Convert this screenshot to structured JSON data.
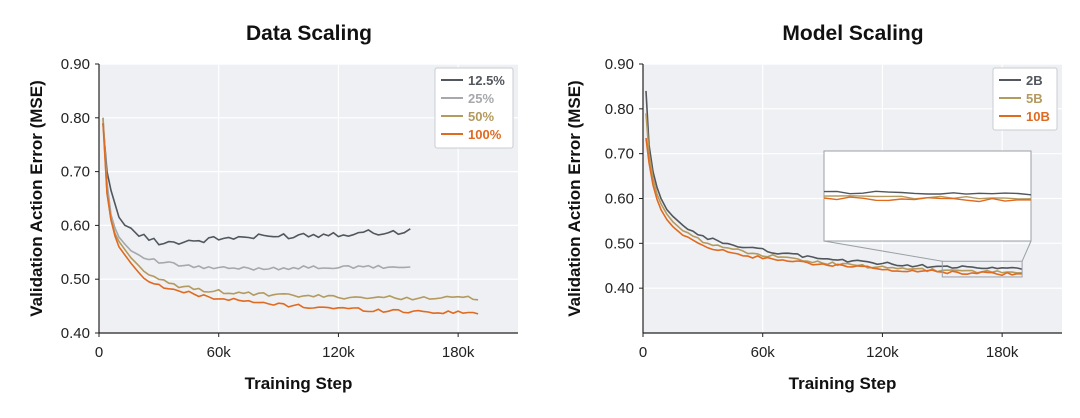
{
  "chart_data": [
    {
      "type": "line",
      "title": "Data Scaling",
      "xlabel": "Training Step",
      "ylabel": "Validation Action Error (MSE)",
      "xlim": [
        0,
        210000
      ],
      "ylim": [
        0.4,
        0.9
      ],
      "xticks": [
        0,
        60000,
        120000,
        180000
      ],
      "xtick_labels": [
        "0",
        "60k",
        "120k",
        "180k"
      ],
      "yticks": [
        0.4,
        0.5,
        0.6,
        0.7,
        0.8,
        0.9
      ],
      "ytick_labels": [
        "0.40",
        "0.50",
        "0.60",
        "0.70",
        "0.80",
        "0.90"
      ],
      "grid": true,
      "legend": "top-right",
      "series": [
        {
          "name": "12.5%",
          "color": "#52575e",
          "points": [
            [
              2000,
              0.79
            ],
            [
              4000,
              0.7
            ],
            [
              6000,
              0.665
            ],
            [
              8000,
              0.64
            ],
            [
              10000,
              0.615
            ],
            [
              13000,
              0.6
            ],
            [
              16000,
              0.595
            ],
            [
              20000,
              0.58
            ],
            [
              25000,
              0.575
            ],
            [
              30000,
              0.57
            ],
            [
              35000,
              0.568
            ],
            [
              40000,
              0.57
            ],
            [
              50000,
              0.572
            ],
            [
              60000,
              0.575
            ],
            [
              70000,
              0.578
            ],
            [
              80000,
              0.578
            ],
            [
              90000,
              0.58
            ],
            [
              100000,
              0.582
            ],
            [
              110000,
              0.583
            ],
            [
              120000,
              0.585
            ],
            [
              130000,
              0.586
            ],
            [
              140000,
              0.588
            ],
            [
              150000,
              0.586
            ],
            [
              156000,
              0.595
            ]
          ]
        },
        {
          "name": "25%",
          "color": "#a6a8ab",
          "points": [
            [
              2000,
              0.8
            ],
            [
              4000,
              0.68
            ],
            [
              6000,
              0.62
            ],
            [
              8000,
              0.595
            ],
            [
              10000,
              0.578
            ],
            [
              13000,
              0.565
            ],
            [
              16000,
              0.553
            ],
            [
              20000,
              0.545
            ],
            [
              25000,
              0.537
            ],
            [
              30000,
              0.532
            ],
            [
              40000,
              0.526
            ],
            [
              50000,
              0.522
            ],
            [
              60000,
              0.52
            ],
            [
              70000,
              0.52
            ],
            [
              80000,
              0.52
            ],
            [
              90000,
              0.521
            ],
            [
              100000,
              0.521
            ],
            [
              110000,
              0.522
            ],
            [
              120000,
              0.522
            ],
            [
              130000,
              0.522
            ],
            [
              140000,
              0.523
            ],
            [
              150000,
              0.522
            ],
            [
              156000,
              0.522
            ]
          ]
        },
        {
          "name": "50%",
          "color": "#b39a5e",
          "points": [
            [
              2000,
              0.8
            ],
            [
              4000,
              0.66
            ],
            [
              6000,
              0.61
            ],
            [
              8000,
              0.585
            ],
            [
              10000,
              0.57
            ],
            [
              13000,
              0.555
            ],
            [
              16000,
              0.54
            ],
            [
              20000,
              0.525
            ],
            [
              25000,
              0.508
            ],
            [
              30000,
              0.498
            ],
            [
              40000,
              0.487
            ],
            [
              50000,
              0.481
            ],
            [
              60000,
              0.477
            ],
            [
              70000,
              0.474
            ],
            [
              80000,
              0.472
            ],
            [
              90000,
              0.47
            ],
            [
              100000,
              0.469
            ],
            [
              110000,
              0.468
            ],
            [
              120000,
              0.467
            ],
            [
              140000,
              0.466
            ],
            [
              160000,
              0.465
            ],
            [
              180000,
              0.465
            ],
            [
              190000,
              0.465
            ]
          ]
        },
        {
          "name": "100%",
          "color": "#e06a1f",
          "points": [
            [
              2000,
              0.79
            ],
            [
              4000,
              0.66
            ],
            [
              6000,
              0.61
            ],
            [
              8000,
              0.58
            ],
            [
              10000,
              0.56
            ],
            [
              13000,
              0.545
            ],
            [
              16000,
              0.53
            ],
            [
              20000,
              0.512
            ],
            [
              25000,
              0.498
            ],
            [
              30000,
              0.488
            ],
            [
              40000,
              0.478
            ],
            [
              50000,
              0.47
            ],
            [
              60000,
              0.465
            ],
            [
              70000,
              0.46
            ],
            [
              80000,
              0.456
            ],
            [
              90000,
              0.453
            ],
            [
              100000,
              0.45
            ],
            [
              110000,
              0.448
            ],
            [
              120000,
              0.446
            ],
            [
              130000,
              0.444
            ],
            [
              140000,
              0.442
            ],
            [
              150000,
              0.441
            ],
            [
              160000,
              0.44
            ],
            [
              170000,
              0.439
            ],
            [
              180000,
              0.438
            ],
            [
              190000,
              0.438
            ]
          ]
        }
      ]
    },
    {
      "type": "line",
      "title": "Model Scaling",
      "xlabel": "Training Step",
      "ylabel": "Validation Action Error (MSE)",
      "xlim": [
        0,
        210000
      ],
      "ylim": [
        0.3,
        0.9
      ],
      "xticks": [
        0,
        60000,
        120000,
        180000
      ],
      "xtick_labels": [
        "0",
        "60k",
        "120k",
        "180k"
      ],
      "yticks": [
        0.4,
        0.5,
        0.6,
        0.7,
        0.8,
        0.9
      ],
      "ytick_labels": [
        "0.40",
        "0.50",
        "0.60",
        "0.70",
        "0.80",
        "0.90"
      ],
      "grid": true,
      "legend": "top-right",
      "inset": true,
      "series": [
        {
          "name": "2B",
          "color": "#52575e",
          "points": [
            [
              1500,
              0.84
            ],
            [
              3000,
              0.72
            ],
            [
              5000,
              0.66
            ],
            [
              7000,
              0.625
            ],
            [
              9000,
              0.6
            ],
            [
              12000,
              0.575
            ],
            [
              15000,
              0.56
            ],
            [
              20000,
              0.54
            ],
            [
              25000,
              0.525
            ],
            [
              30000,
              0.515
            ],
            [
              40000,
              0.502
            ],
            [
              50000,
              0.492
            ],
            [
              60000,
              0.485
            ],
            [
              70000,
              0.478
            ],
            [
              80000,
              0.472
            ],
            [
              90000,
              0.466
            ],
            [
              100000,
              0.462
            ],
            [
              110000,
              0.458
            ],
            [
              120000,
              0.455
            ],
            [
              130000,
              0.452
            ],
            [
              140000,
              0.45
            ],
            [
              150000,
              0.448
            ],
            [
              160000,
              0.446
            ],
            [
              170000,
              0.445
            ],
            [
              180000,
              0.444
            ],
            [
              190000,
              0.443
            ]
          ]
        },
        {
          "name": "5B",
          "color": "#b39a5e",
          "points": [
            [
              1500,
              0.79
            ],
            [
              3000,
              0.7
            ],
            [
              5000,
              0.645
            ],
            [
              7000,
              0.61
            ],
            [
              9000,
              0.588
            ],
            [
              12000,
              0.565
            ],
            [
              15000,
              0.548
            ],
            [
              20000,
              0.528
            ],
            [
              25000,
              0.515
            ],
            [
              30000,
              0.505
            ],
            [
              40000,
              0.492
            ],
            [
              50000,
              0.482
            ],
            [
              60000,
              0.474
            ],
            [
              70000,
              0.468
            ],
            [
              80000,
              0.462
            ],
            [
              90000,
              0.457
            ],
            [
              100000,
              0.453
            ],
            [
              110000,
              0.449
            ],
            [
              120000,
              0.446
            ],
            [
              130000,
              0.443
            ],
            [
              140000,
              0.441
            ],
            [
              150000,
              0.439
            ],
            [
              160000,
              0.438
            ],
            [
              170000,
              0.437
            ],
            [
              180000,
              0.436
            ],
            [
              190000,
              0.435
            ]
          ]
        },
        {
          "name": "10B",
          "color": "#e06a1f",
          "points": [
            [
              1500,
              0.735
            ],
            [
              3000,
              0.68
            ],
            [
              5000,
              0.63
            ],
            [
              7000,
              0.598
            ],
            [
              9000,
              0.575
            ],
            [
              12000,
              0.553
            ],
            [
              15000,
              0.537
            ],
            [
              20000,
              0.518
            ],
            [
              25000,
              0.505
            ],
            [
              30000,
              0.495
            ],
            [
              40000,
              0.483
            ],
            [
              50000,
              0.474
            ],
            [
              60000,
              0.467
            ],
            [
              70000,
              0.462
            ],
            [
              80000,
              0.457
            ],
            [
              90000,
              0.453
            ],
            [
              100000,
              0.449
            ],
            [
              110000,
              0.446
            ],
            [
              120000,
              0.443
            ],
            [
              130000,
              0.44
            ],
            [
              140000,
              0.438
            ],
            [
              150000,
              0.436
            ],
            [
              160000,
              0.434
            ],
            [
              170000,
              0.433
            ],
            [
              180000,
              0.432
            ],
            [
              190000,
              0.43
            ]
          ]
        }
      ]
    }
  ]
}
